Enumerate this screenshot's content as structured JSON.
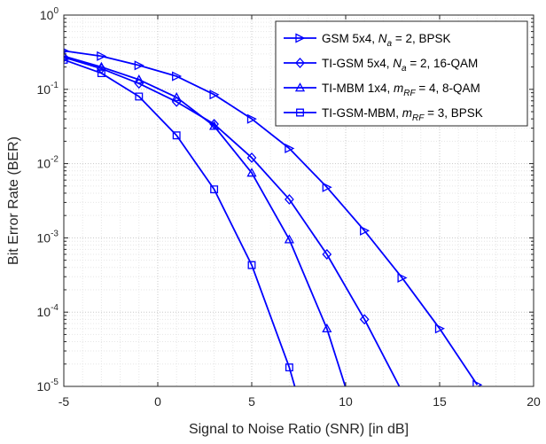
{
  "chart_data": {
    "type": "line",
    "xlabel": "Signal to Noise Ratio (SNR) [in dB]",
    "ylabel": "Bit Error Rate (BER)",
    "xlim": [
      -5,
      20
    ],
    "ylim": [
      1e-05,
      1
    ],
    "yscale": "log",
    "grid": true,
    "legend_position": "top-right",
    "x_ticks": [
      "-5",
      "0",
      "5",
      "10",
      "15",
      "20"
    ],
    "y_ticks": [
      {
        "base": "10",
        "exp": "-5"
      },
      {
        "base": "10",
        "exp": "-4"
      },
      {
        "base": "10",
        "exp": "-3"
      },
      {
        "base": "10",
        "exp": "-2"
      },
      {
        "base": "10",
        "exp": "-1"
      },
      {
        "base": "10",
        "exp": "0"
      }
    ],
    "line_color": "#0000ff",
    "series": [
      {
        "name": "GSM 5x4, N_a = 2, BPSK",
        "legend": [
          {
            "t": "GSM 5x4, "
          },
          {
            "t": "N",
            "style": "italic"
          },
          {
            "t": "a",
            "style": "italic",
            "sub": true
          },
          {
            "t": " = 2, BPSK"
          }
        ],
        "marker": "triangle-right",
        "x": [
          -5,
          -3,
          -1,
          1,
          3,
          5,
          7,
          9,
          11,
          13,
          15,
          17
        ],
        "y": [
          0.33,
          0.28,
          0.21,
          0.15,
          0.085,
          0.04,
          0.016,
          0.0048,
          0.00125,
          0.00029,
          6e-05,
          1.05e-05
        ]
      },
      {
        "name": "TI-GSM 5x4, N_a = 2, 16-QAM",
        "legend": [
          {
            "t": "TI-GSM 5x4, "
          },
          {
            "t": "N",
            "style": "italic"
          },
          {
            "t": "a",
            "style": "italic",
            "sub": true
          },
          {
            "t": " = 2, 16-QAM"
          }
        ],
        "marker": "diamond",
        "x": [
          -5,
          -3,
          -1,
          1,
          3,
          5,
          7,
          9,
          11,
          13
        ],
        "y": [
          0.27,
          0.19,
          0.12,
          0.068,
          0.034,
          0.012,
          0.0033,
          0.0006,
          8e-05,
          8.5e-06
        ]
      },
      {
        "name": "TI-MBM 1x4, m_RF = 4, 8-QAM",
        "legend": [
          {
            "t": "TI-MBM 1x4, "
          },
          {
            "t": "m",
            "style": "italic"
          },
          {
            "t": "RF",
            "style": "italic",
            "sub": true
          },
          {
            "t": " = 4, 8-QAM"
          }
        ],
        "marker": "triangle-up",
        "x": [
          -5,
          -3,
          -1,
          1,
          3,
          5,
          7,
          9,
          10.1
        ],
        "y": [
          0.28,
          0.2,
          0.135,
          0.078,
          0.032,
          0.0075,
          0.00095,
          6e-05,
          8e-06
        ]
      },
      {
        "name": "TI-GSM-MBM, m_RF = 3, BPSK",
        "legend": [
          {
            "t": "TI-GSM-MBM, "
          },
          {
            "t": "m",
            "style": "italic"
          },
          {
            "t": "RF",
            "style": "italic",
            "sub": true
          },
          {
            "t": " = 3, BPSK"
          }
        ],
        "marker": "square",
        "x": [
          -5,
          -3,
          -1,
          1,
          3,
          5,
          7,
          7.4
        ],
        "y": [
          0.25,
          0.165,
          0.08,
          0.024,
          0.0045,
          0.00043,
          1.8e-05,
          8e-06
        ]
      }
    ]
  }
}
